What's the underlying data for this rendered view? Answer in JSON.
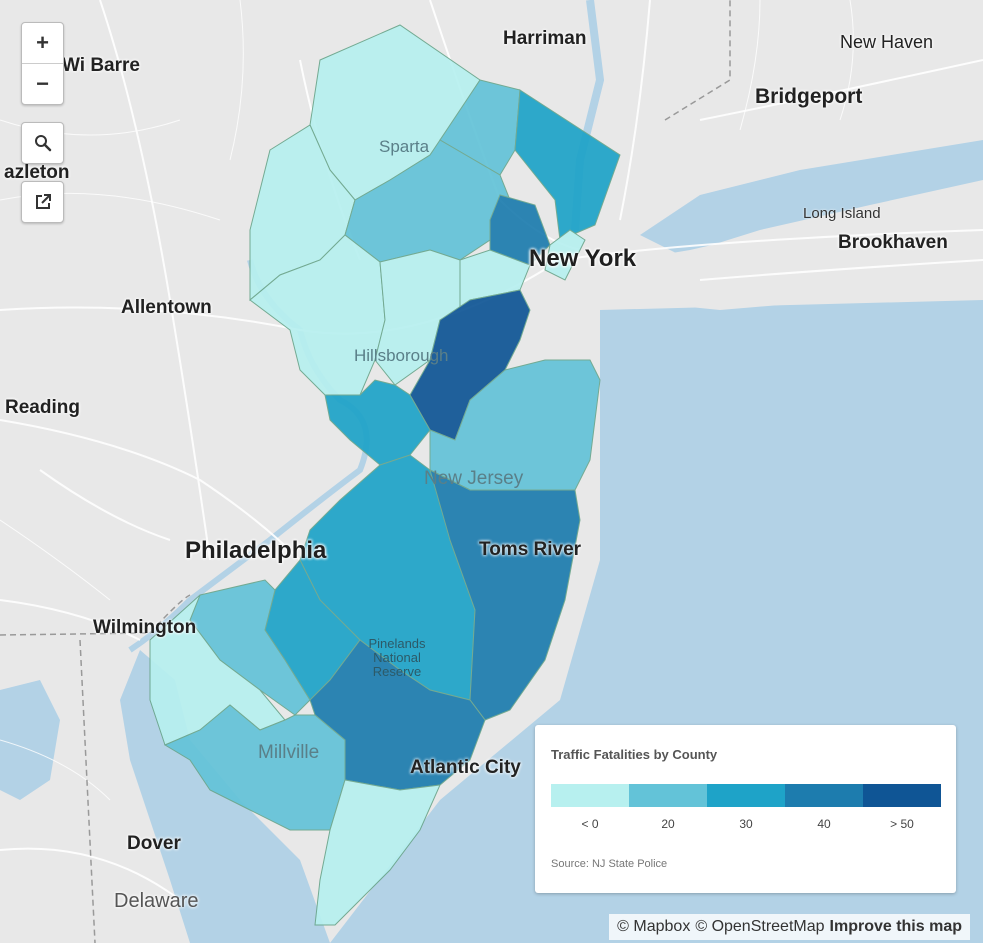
{
  "map": {
    "legend": {
      "title": "Traffic Fatalities by County",
      "colors": [
        "#b7f0ef",
        "#63c3d8",
        "#1ea3c8",
        "#1d7cae",
        "#0f5595"
      ],
      "ticks": [
        "< 0",
        "20",
        "30",
        "40",
        "> 50"
      ],
      "source": "Source: NJ State Police"
    },
    "controls": {
      "zoom_in": "+",
      "zoom_out": "−",
      "search_icon": "search-icon",
      "external_link_icon": "external-link-icon"
    },
    "labels": {
      "new_york": "New York",
      "philadelphia": "Philadelphia",
      "bridgeport": "Bridgeport",
      "new_haven": "New Haven",
      "harriman": "Harriman",
      "brookhaven": "Brookhaven",
      "long_island": "Long Island",
      "allentown": "Allentown",
      "reading": "Reading",
      "wilmington": "Wilmington",
      "dover": "Dover",
      "delaware": "Delaware",
      "toms_river": "Toms River",
      "atlantic_city": "Atlantic City",
      "millville": "Millville",
      "sparta": "Sparta",
      "hillsborough": "Hillsborough",
      "new_jersey": "New Jersey",
      "pinelands": "Pinelands National Reserve",
      "wilkes_barre": "Wi    Barre",
      "hazleton": "azleton"
    },
    "attribution": {
      "mapbox": "© Mapbox",
      "osm": "© OpenStreetMap",
      "improve": "Improve this map"
    }
  }
}
